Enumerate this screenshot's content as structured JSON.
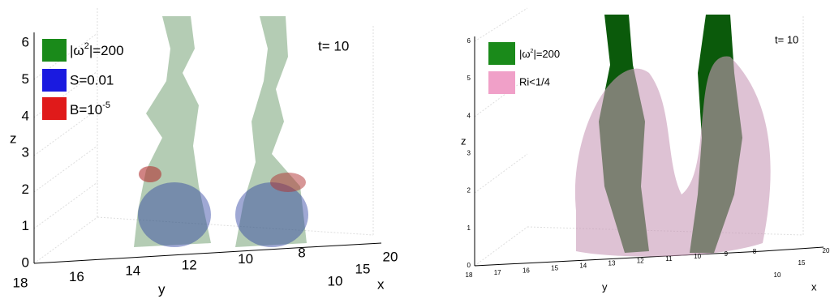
{
  "left": {
    "annotation": "t= 10",
    "z_label": "z",
    "y_label": "y",
    "x_label": "x",
    "z_ticks": [
      0,
      1,
      2,
      3,
      4,
      5,
      6
    ],
    "y_ticks": [
      18,
      16,
      14,
      12,
      10,
      8
    ],
    "x_ticks": [
      10,
      15,
      20
    ],
    "legend": [
      {
        "text": "|ω",
        "sup": "2",
        "rest": "|=200"
      },
      {
        "text": "S=0.01"
      },
      {
        "text": "B=10",
        "sup": "-5"
      }
    ]
  },
  "right": {
    "annotation": "t= 10",
    "z_label": "z",
    "y_label": "y",
    "x_label": "x",
    "z_ticks": [
      0,
      1,
      2,
      3,
      4,
      5,
      6
    ],
    "y_ticks": [
      18,
      17,
      16,
      15,
      14,
      13,
      12,
      11,
      10,
      9,
      8
    ],
    "x_ticks": [
      10,
      15,
      20
    ],
    "legend": [
      {
        "text": "|ω",
        "sup": "2",
        "rest": "|=200"
      },
      {
        "text": "Ri<1/4"
      }
    ]
  }
}
